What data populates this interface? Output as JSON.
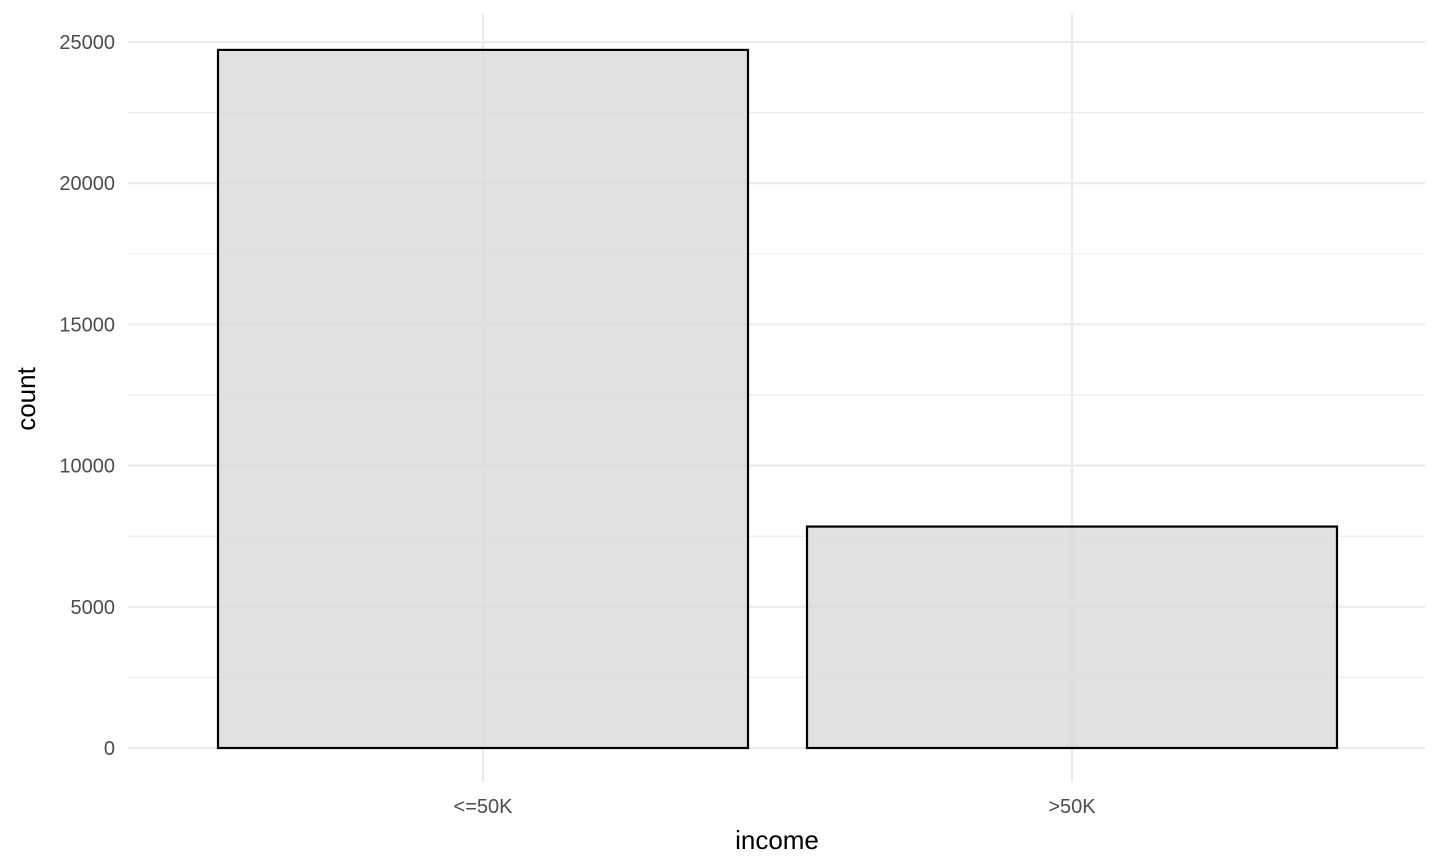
{
  "chart_data": {
    "type": "bar",
    "categories": [
      "<=50K",
      ">50K"
    ],
    "values": [
      24720,
      7841
    ],
    "title": "",
    "xlabel": "income",
    "ylabel": "count",
    "ylim": [
      0,
      25000
    ],
    "yticks": [
      0,
      5000,
      10000,
      15000,
      20000,
      25000
    ],
    "ytick_labels": [
      "0",
      "5000",
      "10000",
      "15000",
      "20000",
      "25000"
    ],
    "grid": true,
    "legend": "none",
    "bar_fill": "#d9d9d9",
    "bar_outline": "#000000"
  }
}
